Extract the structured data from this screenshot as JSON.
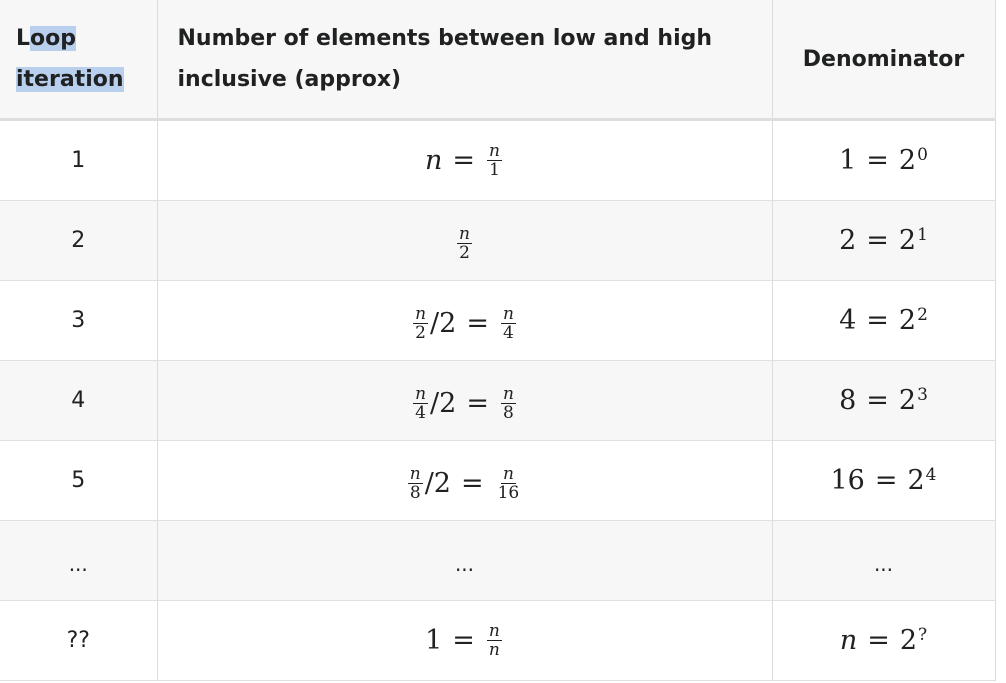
{
  "headers": {
    "loop_iteration_part1": "Loop",
    "loop_iteration_part2": "iteration",
    "elements": "Number of elements between low and high inclusive (approx)",
    "denominator": "Denominator"
  },
  "rows": [
    {
      "iteration": "1",
      "elements": {
        "lhs": "n",
        "eq": "=",
        "num": "n",
        "den": "1"
      },
      "denominator": {
        "base_val": "1",
        "eq": "=",
        "base": "2",
        "exp": "0"
      }
    },
    {
      "iteration": "2",
      "elements": {
        "num": "n",
        "den": "2"
      },
      "denominator": {
        "base_val": "2",
        "eq": "=",
        "base": "2",
        "exp": "1"
      }
    },
    {
      "iteration": "3",
      "elements": {
        "num1": "n",
        "den1": "2",
        "div": "/2",
        "eq": "=",
        "num2": "n",
        "den2": "4"
      },
      "denominator": {
        "base_val": "4",
        "eq": "=",
        "base": "2",
        "exp": "2"
      }
    },
    {
      "iteration": "4",
      "elements": {
        "num1": "n",
        "den1": "4",
        "div": "/2",
        "eq": "=",
        "num2": "n",
        "den2": "8"
      },
      "denominator": {
        "base_val": "8",
        "eq": "=",
        "base": "2",
        "exp": "3"
      }
    },
    {
      "iteration": "5",
      "elements": {
        "num1": "n",
        "den1": "8",
        "div": "/2",
        "eq": "=",
        "num2": "n",
        "den2": "16"
      },
      "denominator": {
        "base_val": "16",
        "eq": "=",
        "base": "2",
        "exp": "4"
      }
    },
    {
      "iteration": "...",
      "elements": {
        "text": "..."
      },
      "denominator": {
        "text": "..."
      }
    },
    {
      "iteration": "??",
      "elements": {
        "lhs": "1",
        "eq": "=",
        "num": "n",
        "den": "n"
      },
      "denominator": {
        "base_val": "n",
        "eq": "=",
        "base": "2",
        "exp": "?"
      }
    }
  ],
  "colors": {
    "header_bg": "#f7f7f7",
    "stripe_bg": "#f7f7f7",
    "selection_highlight": "#b9cfee",
    "text": "#202122"
  }
}
